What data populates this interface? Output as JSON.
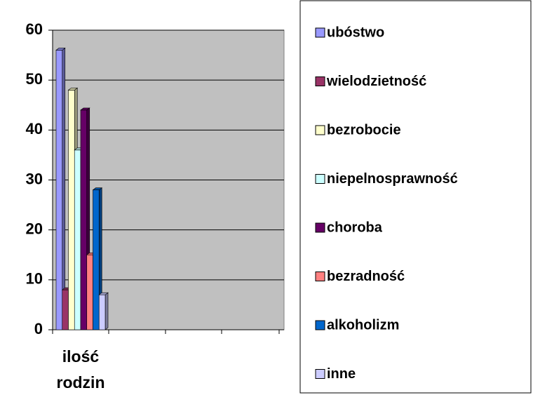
{
  "chart_data": {
    "type": "bar3d",
    "categories": [
      "ilość rodzin"
    ],
    "series": [
      {
        "name": "ubóstwo",
        "color": "#9999ff",
        "values": [
          56
        ]
      },
      {
        "name": "wielodzietność",
        "color": "#993366",
        "values": [
          8
        ]
      },
      {
        "name": "bezrobocie",
        "color": "#ffffcc",
        "values": [
          48
        ]
      },
      {
        "name": "niepelnosprawność",
        "color": "#ccffff",
        "values": [
          36
        ]
      },
      {
        "name": "choroba",
        "color": "#660066",
        "values": [
          44
        ]
      },
      {
        "name": "bezradność",
        "color": "#ff8080",
        "values": [
          15
        ]
      },
      {
        "name": "alkoholizm",
        "color": "#0066cc",
        "values": [
          28
        ]
      },
      {
        "name": "inne",
        "color": "#ccccff",
        "values": [
          7
        ]
      }
    ],
    "ylim": [
      0,
      60
    ],
    "yticks": [
      0,
      10,
      20,
      30,
      40,
      50,
      60
    ],
    "grid": true,
    "legend": "right"
  }
}
